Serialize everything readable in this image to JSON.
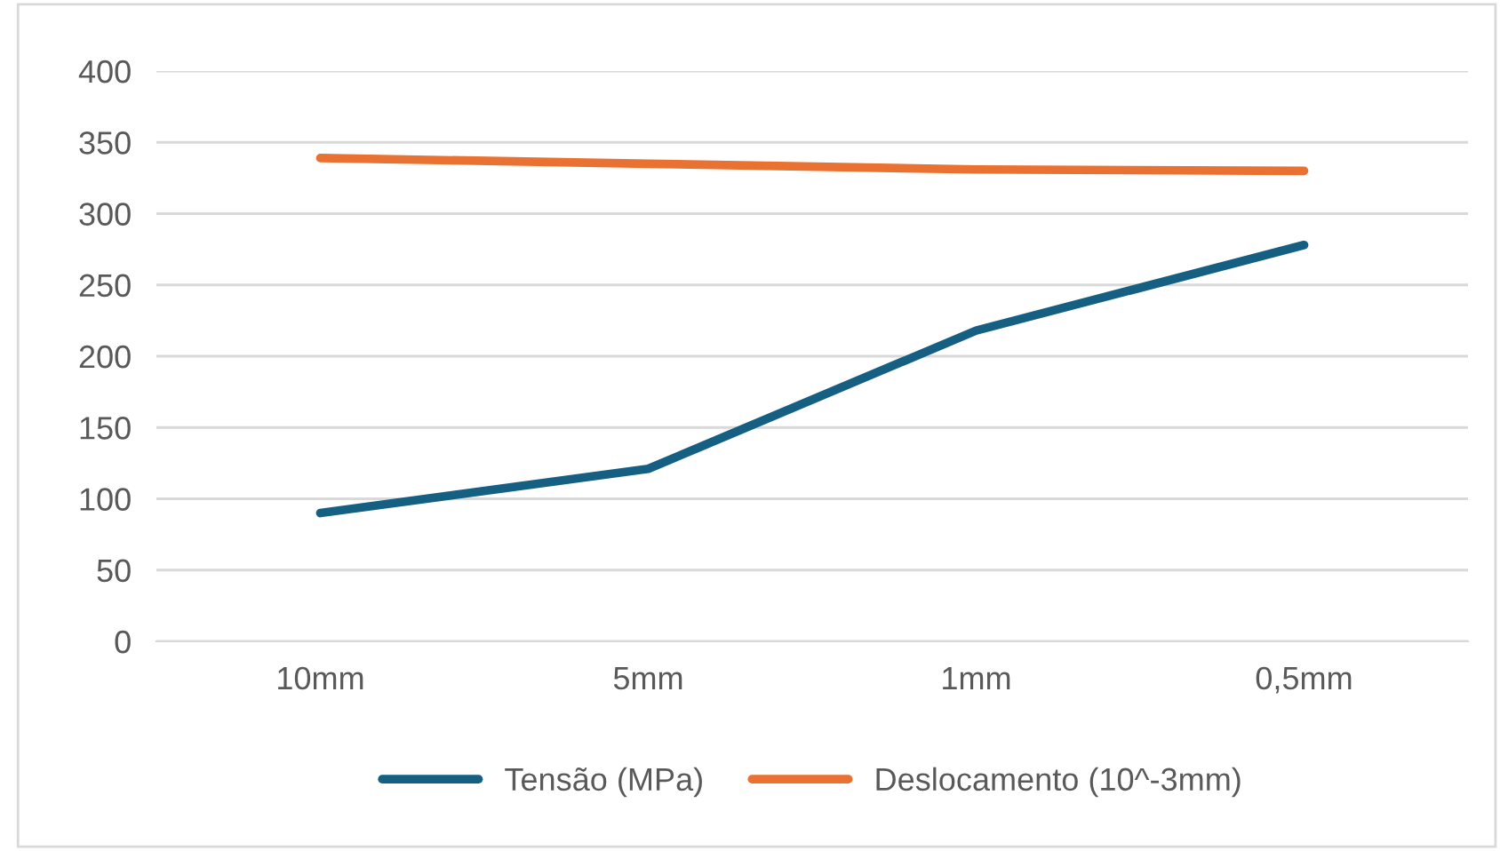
{
  "chart_data": {
    "type": "line",
    "categories": [
      "10mm",
      "5mm",
      "1mm",
      "0,5mm"
    ],
    "series": [
      {
        "name": "Tensão (MPa)",
        "color": "#156082",
        "values": [
          90,
          121,
          218,
          278
        ]
      },
      {
        "name": "Deslocamento (10^-3mm)",
        "color": "#e97132",
        "values": [
          339,
          335,
          331,
          330
        ]
      }
    ],
    "ylim": [
      0,
      400
    ],
    "yticks": [
      0,
      50,
      100,
      150,
      200,
      250,
      300,
      350,
      400
    ],
    "grid": "y",
    "legend": "bottom",
    "marker": "none",
    "line_style": "solid"
  }
}
